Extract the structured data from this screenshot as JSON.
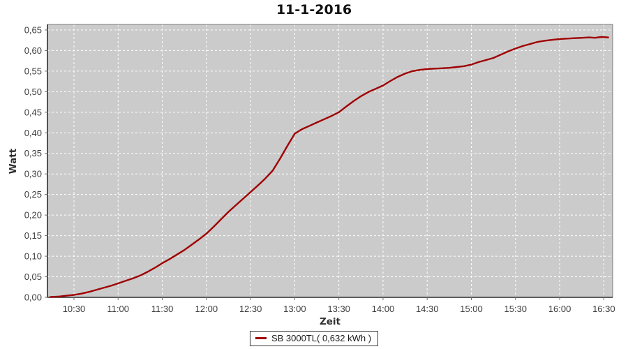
{
  "page": {
    "background": "#ffffff"
  },
  "chart_data": {
    "type": "line",
    "title": "11-1-2016",
    "xlabel": "Zeit",
    "ylabel": "Watt",
    "plot_bg": "#cbcbcb",
    "grid_color": "#ffffff",
    "grid": true,
    "x_range": [
      "10:12",
      "16:36"
    ],
    "ylim": [
      0,
      0.6635
    ],
    "x_tick_labels": [
      "10:30",
      "11:00",
      "11:30",
      "12:00",
      "12:30",
      "13:00",
      "13:30",
      "14:00",
      "14:30",
      "15:00",
      "15:30",
      "16:00",
      "16:30"
    ],
    "y_ticks": [
      {
        "label": "0,00",
        "value": 0.0
      },
      {
        "label": "0,05",
        "value": 0.05
      },
      {
        "label": "0,10",
        "value": 0.1
      },
      {
        "label": "0,15",
        "value": 0.15
      },
      {
        "label": "0,20",
        "value": 0.2
      },
      {
        "label": "0,25",
        "value": 0.25
      },
      {
        "label": "0,30",
        "value": 0.3
      },
      {
        "label": "0,35",
        "value": 0.35
      },
      {
        "label": "0,40",
        "value": 0.4
      },
      {
        "label": "0,45",
        "value": 0.45
      },
      {
        "label": "0,50",
        "value": 0.5
      },
      {
        "label": "0,55",
        "value": 0.55
      },
      {
        "label": "0,60",
        "value": 0.6
      },
      {
        "label": "0,65",
        "value": 0.65
      }
    ],
    "series": [
      {
        "name": "SB 3000TL( 0,632 kWh )",
        "color": "#a00000",
        "points": [
          [
            "10:14",
            0.001
          ],
          [
            "10:20",
            0.002
          ],
          [
            "10:25",
            0.004
          ],
          [
            "10:30",
            0.006
          ],
          [
            "10:35",
            0.009
          ],
          [
            "10:40",
            0.013
          ],
          [
            "10:45",
            0.018
          ],
          [
            "10:50",
            0.023
          ],
          [
            "10:55",
            0.028
          ],
          [
            "11:00",
            0.034
          ],
          [
            "11:05",
            0.04
          ],
          [
            "11:10",
            0.046
          ],
          [
            "11:15",
            0.053
          ],
          [
            "11:20",
            0.062
          ],
          [
            "11:25",
            0.072
          ],
          [
            "11:30",
            0.083
          ],
          [
            "11:35",
            0.093
          ],
          [
            "11:40",
            0.104
          ],
          [
            "11:45",
            0.115
          ],
          [
            "11:50",
            0.128
          ],
          [
            "11:55",
            0.141
          ],
          [
            "12:00",
            0.155
          ],
          [
            "12:05",
            0.172
          ],
          [
            "12:10",
            0.19
          ],
          [
            "12:15",
            0.208
          ],
          [
            "12:20",
            0.224
          ],
          [
            "12:25",
            0.24
          ],
          [
            "12:30",
            0.256
          ],
          [
            "12:35",
            0.272
          ],
          [
            "12:40",
            0.289
          ],
          [
            "12:45",
            0.308
          ],
          [
            "12:50",
            0.337
          ],
          [
            "12:55",
            0.368
          ],
          [
            "13:00",
            0.398
          ],
          [
            "13:05",
            0.409
          ],
          [
            "13:10",
            0.417
          ],
          [
            "13:15",
            0.425
          ],
          [
            "13:20",
            0.433
          ],
          [
            "13:25",
            0.441
          ],
          [
            "13:30",
            0.45
          ],
          [
            "13:35",
            0.464
          ],
          [
            "13:40",
            0.477
          ],
          [
            "13:45",
            0.489
          ],
          [
            "13:50",
            0.499
          ],
          [
            "13:55",
            0.507
          ],
          [
            "14:00",
            0.515
          ],
          [
            "14:05",
            0.526
          ],
          [
            "14:10",
            0.536
          ],
          [
            "14:15",
            0.544
          ],
          [
            "14:20",
            0.55
          ],
          [
            "14:25",
            0.553
          ],
          [
            "14:30",
            0.555
          ],
          [
            "14:35",
            0.556
          ],
          [
            "14:40",
            0.557
          ],
          [
            "14:45",
            0.558
          ],
          [
            "14:50",
            0.56
          ],
          [
            "14:55",
            0.562
          ],
          [
            "15:00",
            0.566
          ],
          [
            "15:05",
            0.572
          ],
          [
            "15:10",
            0.577
          ],
          [
            "15:15",
            0.582
          ],
          [
            "15:20",
            0.59
          ],
          [
            "15:25",
            0.598
          ],
          [
            "15:30",
            0.605
          ],
          [
            "15:35",
            0.611
          ],
          [
            "15:40",
            0.616
          ],
          [
            "15:45",
            0.621
          ],
          [
            "15:50",
            0.624
          ],
          [
            "15:55",
            0.626
          ],
          [
            "16:00",
            0.628
          ],
          [
            "16:05",
            0.629
          ],
          [
            "16:10",
            0.63
          ],
          [
            "16:15",
            0.631
          ],
          [
            "16:20",
            0.632
          ],
          [
            "16:24",
            0.631
          ],
          [
            "16:28",
            0.633
          ],
          [
            "16:33",
            0.632
          ]
        ]
      }
    ],
    "legend": {
      "position": "bottom",
      "entries": [
        {
          "label": "SB 3000TL( 0,632 kWh )",
          "color": "#a00000"
        }
      ]
    }
  }
}
